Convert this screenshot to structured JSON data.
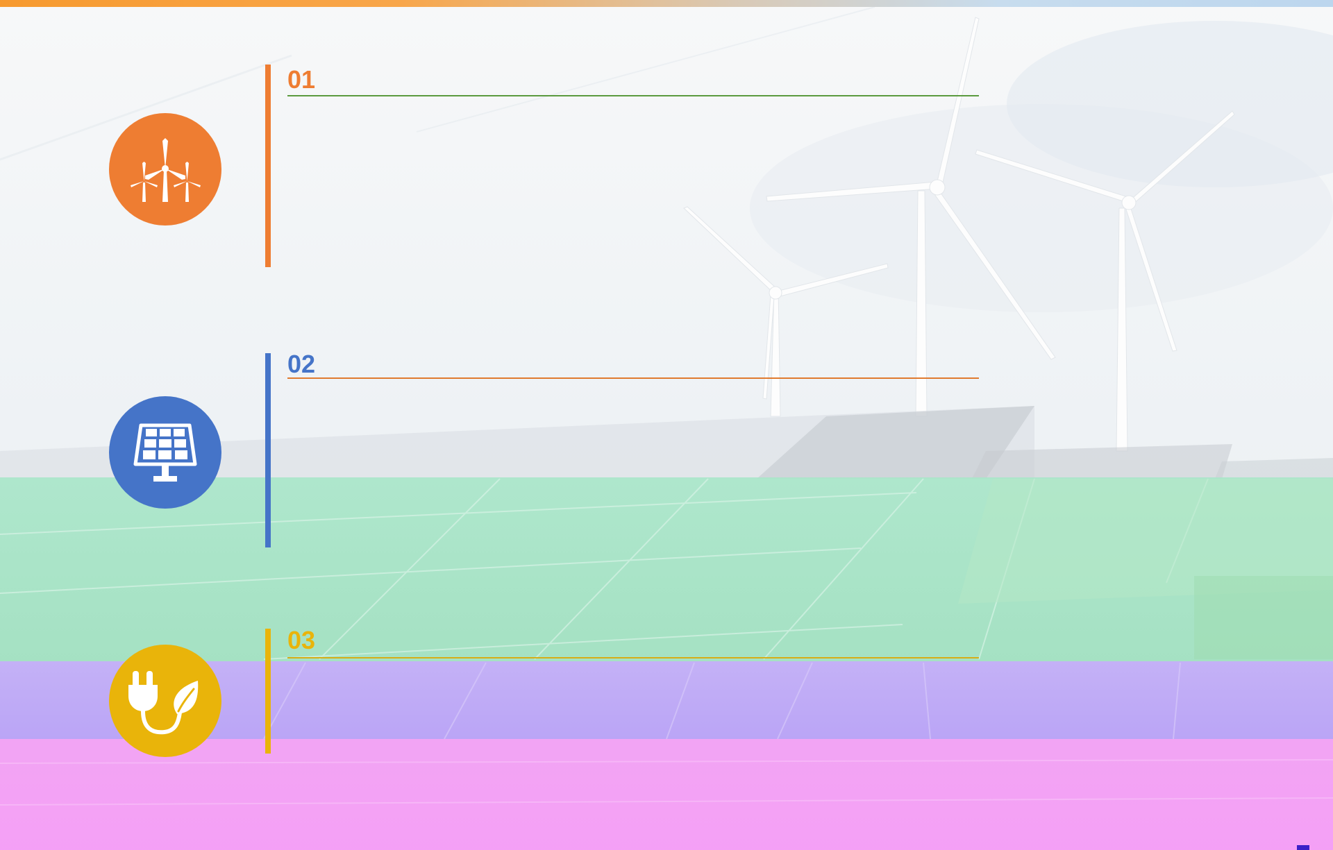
{
  "colors": {
    "orange": "#ee7d32",
    "blue": "#4574c8",
    "gold": "#e9b40a",
    "green_line": "#5a9a3e",
    "orange_line": "#e07a2e",
    "gold_line": "#d6ad16"
  },
  "items": [
    {
      "number": "01",
      "icon": "wind-turbine-icon",
      "accent": "#ee7d32",
      "line_color": "#5a9a3e"
    },
    {
      "number": "02",
      "icon": "solar-panel-icon",
      "accent": "#4574c8",
      "line_color": "#e07a2e"
    },
    {
      "number": "03",
      "icon": "eco-plug-icon",
      "accent": "#e9b40a",
      "line_color": "#d6ad16"
    }
  ]
}
